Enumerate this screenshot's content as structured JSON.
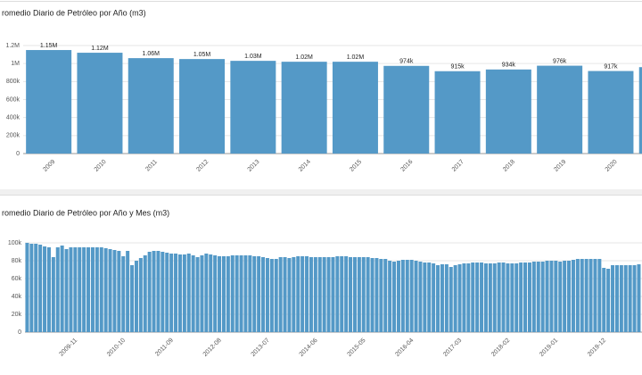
{
  "chart_data": [
    {
      "type": "bar",
      "title": "romedio Diario de Petróleo por Año (m3)",
      "categories": [
        "2009",
        "2010",
        "2011",
        "2012",
        "2013",
        "2014",
        "2015",
        "2016",
        "2017",
        "2018",
        "2019",
        "2020",
        null
      ],
      "values": [
        1150000,
        1120000,
        1060000,
        1050000,
        1030000,
        1020000,
        1020000,
        974000,
        915000,
        934000,
        976000,
        917000,
        960000
      ],
      "value_labels": [
        "1.15M",
        "1.12M",
        "1.06M",
        "1.05M",
        "1.03M",
        "1.02M",
        "1.02M",
        "974k",
        "915k",
        "934k",
        "976k",
        "917k",
        null
      ],
      "color": "#5499c7",
      "ylim": [
        0,
        1200000
      ],
      "yticks": [
        0,
        {
          "value": 200000,
          "label": "200k"
        },
        {
          "value": 400000,
          "label": "400k"
        },
        {
          "value": 600000,
          "label": "600k"
        },
        {
          "value": 800000,
          "label": "800k"
        },
        {
          "value": 1000000,
          "label": "1M"
        },
        {
          "value": 1200000,
          "label": "1.2M"
        }
      ],
      "grid": true
    },
    {
      "type": "bar",
      "title": "romedio Diario de Petróleo por Año y Mes (m3)",
      "categories": [
        null,
        null,
        null,
        null,
        null,
        null,
        null,
        null,
        null,
        null,
        "2009-11",
        null,
        null,
        null,
        null,
        null,
        null,
        null,
        null,
        null,
        null,
        "2010-10",
        null,
        null,
        null,
        null,
        null,
        null,
        null,
        null,
        null,
        null,
        "2011-09",
        null,
        null,
        null,
        null,
        null,
        null,
        null,
        null,
        null,
        null,
        "2012-08",
        null,
        null,
        null,
        null,
        null,
        null,
        null,
        null,
        null,
        null,
        "2013-07",
        null,
        null,
        null,
        null,
        null,
        null,
        null,
        null,
        null,
        null,
        "2014-06",
        null,
        null,
        null,
        null,
        null,
        null,
        null,
        null,
        null,
        null,
        "2015-05",
        null,
        null,
        null,
        null,
        null,
        null,
        null,
        null,
        null,
        null,
        "2016-04",
        null,
        null,
        null,
        null,
        null,
        null,
        null,
        null,
        null,
        null,
        "2017-03",
        null,
        null,
        null,
        null,
        null,
        null,
        null,
        null,
        null,
        null,
        "2018-02",
        null,
        null,
        null,
        null,
        null,
        null,
        null,
        null,
        null,
        null,
        "2019-01",
        null,
        null,
        null,
        null,
        null,
        null,
        null,
        null,
        null,
        null,
        "2019-12",
        null,
        null,
        null,
        null,
        null,
        null,
        null,
        null,
        null
      ],
      "values": [
        100000,
        99000,
        99000,
        98000,
        96000,
        95000,
        84000,
        95000,
        97000,
        93000,
        95000,
        95000,
        95000,
        95000,
        95000,
        95000,
        95000,
        95000,
        94000,
        93000,
        92000,
        91000,
        85000,
        91000,
        75000,
        80000,
        83000,
        86000,
        90000,
        91000,
        91000,
        90000,
        89000,
        88000,
        88000,
        87000,
        87000,
        88000,
        86000,
        84000,
        86000,
        88000,
        87000,
        86000,
        85000,
        85000,
        85000,
        86000,
        86000,
        86000,
        86000,
        86000,
        85000,
        85000,
        84000,
        83000,
        82000,
        82000,
        84000,
        84000,
        83000,
        84000,
        85000,
        85000,
        85000,
        84000,
        84000,
        84000,
        84000,
        84000,
        84000,
        85000,
        85000,
        85000,
        84000,
        84000,
        84000,
        84000,
        84000,
        83000,
        83000,
        82000,
        82000,
        80000,
        79000,
        80000,
        81000,
        81000,
        81000,
        80000,
        79000,
        78000,
        78000,
        77000,
        75000,
        76000,
        76000,
        73000,
        75000,
        76000,
        77000,
        77000,
        78000,
        78000,
        78000,
        77000,
        77000,
        77000,
        78000,
        78000,
        77000,
        77000,
        77000,
        78000,
        78000,
        78000,
        79000,
        79000,
        79000,
        80000,
        80000,
        80000,
        79000,
        80000,
        80000,
        81000,
        82000,
        82000,
        82000,
        82000,
        82000,
        82000,
        72000,
        71000,
        75000,
        75000,
        75000,
        75000,
        75000,
        75000,
        76000
      ],
      "color": "#5499c7",
      "ylim": [
        0,
        110000
      ],
      "yticks": [
        0,
        {
          "value": 20000,
          "label": "20k"
        },
        {
          "value": 40000,
          "label": "40k"
        },
        {
          "value": 60000,
          "label": "60k"
        },
        {
          "value": 80000,
          "label": "80k"
        },
        {
          "value": 100000,
          "label": "100k"
        }
      ],
      "grid": true
    }
  ]
}
